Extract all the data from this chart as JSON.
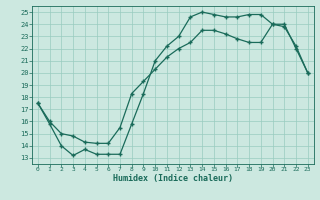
{
  "xlabel": "Humidex (Indice chaleur)",
  "bg_color": "#cce8e0",
  "grid_color": "#99ccbf",
  "line_color": "#1a6b5a",
  "marker": "+",
  "markersize": 3,
  "markeredgewidth": 1.0,
  "linewidth": 0.9,
  "xlim": [
    -0.5,
    23.5
  ],
  "ylim": [
    12.5,
    25.5
  ],
  "xticks": [
    0,
    1,
    2,
    3,
    4,
    5,
    6,
    7,
    8,
    9,
    10,
    11,
    12,
    13,
    14,
    15,
    16,
    17,
    18,
    19,
    20,
    21,
    22,
    23
  ],
  "yticks": [
    13,
    14,
    15,
    16,
    17,
    18,
    19,
    20,
    21,
    22,
    23,
    24,
    25
  ],
  "line1_x": [
    0,
    1,
    2,
    3,
    4,
    5,
    6,
    7,
    8,
    9,
    10,
    11,
    12,
    13,
    14,
    15,
    16,
    17,
    18,
    19,
    20,
    21,
    22,
    23
  ],
  "line1_y": [
    17.5,
    15.8,
    14.0,
    13.2,
    13.7,
    13.3,
    13.3,
    13.3,
    15.8,
    18.3,
    21.0,
    22.2,
    23.0,
    24.6,
    25.0,
    24.8,
    24.6,
    24.6,
    24.8,
    24.8,
    24.0,
    23.8,
    22.2,
    20.0
  ],
  "line2_x": [
    0,
    1,
    2,
    3,
    4,
    5,
    6,
    7,
    8,
    9,
    10,
    11,
    12,
    13,
    14,
    15,
    16,
    17,
    18,
    19,
    20,
    21,
    22,
    23
  ],
  "line2_y": [
    17.5,
    16.0,
    15.0,
    14.8,
    14.3,
    14.2,
    14.2,
    15.5,
    18.3,
    19.3,
    20.3,
    21.3,
    22.0,
    22.5,
    23.5,
    23.5,
    23.2,
    22.8,
    22.5,
    22.5,
    24.0,
    24.0,
    22.0,
    20.0
  ]
}
